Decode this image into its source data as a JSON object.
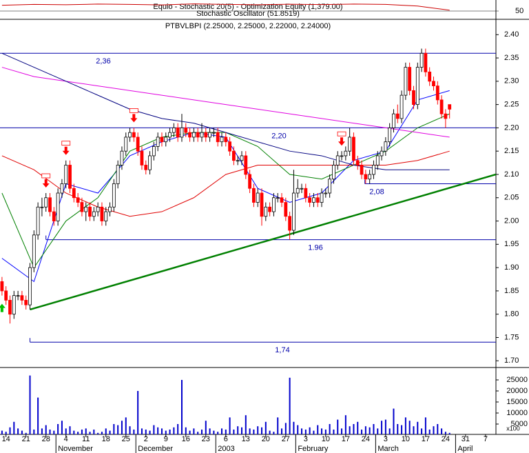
{
  "chart_data": {
    "type": "candlestick",
    "title": "PTBVLBPI (2.25000, 2.25000, 2.22000, 2.24000)",
    "xlim": [
      -0.5,
      123.6
    ],
    "ylim": [
      1.69,
      2.43
    ],
    "yticks": [
      {
        "value": 2.4,
        "label": "2.40"
      },
      2.35,
      {
        "value": 2.3,
        "label": "2.30"
      },
      2.25,
      {
        "value": 2.2,
        "label": "2.20"
      },
      2.15,
      {
        "value": 2.1,
        "label": "2.10"
      },
      2.05,
      {
        "value": 2.0,
        "label": "2.00"
      },
      1.95,
      {
        "value": 1.9,
        "label": "1.90"
      },
      1.85,
      {
        "value": 1.8,
        "label": "1.80"
      },
      1.75,
      {
        "value": 1.7,
        "label": "1.70"
      }
    ],
    "xticks": [
      {
        "value": 1,
        "label": "14"
      },
      {
        "value": 6,
        "label": "21"
      },
      {
        "value": 11,
        "label": "28"
      },
      {
        "value": 16,
        "label": "4"
      },
      {
        "value": 21,
        "label": "11"
      },
      {
        "value": 26,
        "label": "18"
      },
      {
        "value": 31,
        "label": "25"
      },
      {
        "value": 36,
        "label": "2"
      },
      {
        "value": 41,
        "label": "9"
      },
      {
        "value": 46,
        "label": "16"
      },
      {
        "value": 51,
        "label": "23"
      },
      {
        "value": 56,
        "label": "6"
      },
      {
        "value": 61,
        "label": "13"
      },
      {
        "value": 66,
        "label": "20"
      },
      {
        "value": 71,
        "label": "27"
      },
      {
        "value": 76,
        "label": "3"
      },
      {
        "value": 81,
        "label": "10"
      },
      {
        "value": 86,
        "label": "17"
      },
      {
        "value": 91,
        "label": "24"
      },
      {
        "value": 96,
        "label": "3"
      },
      {
        "value": 101,
        "label": "10"
      },
      {
        "value": 106,
        "label": "17"
      },
      {
        "value": 111,
        "label": "24"
      },
      {
        "value": 116,
        "label": "31"
      },
      {
        "value": 121,
        "label": "7"
      }
    ],
    "months": [
      {
        "value": 13.5,
        "label": "November"
      },
      {
        "value": 33.5,
        "label": "December"
      },
      {
        "value": 53.5,
        "label": "2003"
      },
      {
        "value": 73.5,
        "label": "February"
      },
      {
        "value": 93.5,
        "label": "March"
      },
      {
        "value": 113.5,
        "label": "April"
      }
    ],
    "candles": {
      "up_color": "#ffffff",
      "down_color": "#ff0000",
      "open": [
        1.87,
        1.85,
        1.83,
        1.8,
        1.84,
        1.84,
        1.83,
        1.82,
        1.9,
        1.97,
        2.03,
        2.03,
        2.05,
        2.02,
        2.0,
        2.06,
        2.08,
        2.12,
        2.07,
        2.05,
        2.04,
        2.02,
        2.03,
        2.01,
        2.02,
        2.03,
        2.0,
        2.02,
        2.03,
        2.08,
        2.12,
        2.15,
        2.18,
        2.19,
        2.18,
        2.15,
        2.12,
        2.11,
        2.14,
        2.16,
        2.18,
        2.17,
        2.18,
        2.19,
        2.2,
        2.18,
        2.2,
        2.19,
        2.18,
        2.19,
        2.18,
        2.19,
        2.18,
        2.19,
        2.19,
        2.17,
        2.18,
        2.17,
        2.15,
        2.13,
        2.13,
        2.14,
        2.1,
        2.07,
        2.04,
        2.06,
        2.01,
        2.03,
        2.02,
        2.05,
        2.05,
        2.04,
        2.01,
        1.98,
        2.06,
        2.07,
        2.07,
        2.05,
        2.04,
        2.05,
        2.04,
        2.06,
        2.06,
        2.09,
        2.12,
        2.14,
        2.14,
        2.15,
        2.18,
        2.13,
        2.12,
        2.1,
        2.09,
        2.1,
        2.12,
        2.14,
        2.15,
        2.17,
        2.2,
        2.23,
        2.22,
        2.27,
        2.33,
        2.28,
        2.25,
        2.33,
        2.36,
        2.32,
        2.3,
        2.29,
        2.26,
        2.23,
        2.25
      ],
      "high": [
        1.88,
        1.86,
        1.84,
        1.85,
        1.85,
        1.85,
        1.84,
        1.91,
        1.98,
        2.04,
        2.05,
        2.06,
        2.06,
        2.03,
        2.07,
        2.09,
        2.13,
        2.13,
        2.08,
        2.06,
        2.05,
        2.04,
        2.04,
        2.03,
        2.04,
        2.04,
        2.03,
        2.04,
        2.09,
        2.13,
        2.16,
        2.19,
        2.2,
        2.2,
        2.19,
        2.16,
        2.13,
        2.15,
        2.17,
        2.19,
        2.19,
        2.19,
        2.2,
        2.21,
        2.21,
        2.23,
        2.21,
        2.2,
        2.2,
        2.2,
        2.21,
        2.2,
        2.2,
        2.2,
        2.2,
        2.19,
        2.19,
        2.18,
        2.16,
        2.14,
        2.15,
        2.15,
        2.11,
        2.08,
        2.07,
        2.07,
        2.04,
        2.04,
        2.06,
        2.06,
        2.06,
        2.05,
        2.02,
        2.11,
        2.09,
        2.08,
        2.08,
        2.06,
        2.06,
        2.06,
        2.07,
        2.07,
        2.1,
        2.13,
        2.15,
        2.15,
        2.16,
        2.2,
        2.19,
        2.14,
        2.13,
        2.11,
        2.11,
        2.13,
        2.15,
        2.16,
        2.18,
        2.21,
        2.24,
        2.25,
        2.28,
        2.34,
        2.34,
        2.29,
        2.34,
        2.37,
        2.37,
        2.33,
        2.31,
        2.3,
        2.27,
        2.24,
        2.25
      ],
      "low": [
        1.84,
        1.82,
        1.78,
        1.79,
        1.83,
        1.82,
        1.81,
        1.81,
        1.89,
        1.96,
        2.01,
        2.02,
        2.01,
        1.99,
        1.99,
        2.05,
        2.07,
        2.06,
        2.04,
        2.03,
        2.01,
        2.0,
        2.0,
        2.0,
        2.01,
        1.99,
        1.99,
        2.01,
        2.02,
        2.07,
        2.11,
        2.14,
        2.17,
        2.17,
        2.14,
        2.11,
        2.1,
        2.1,
        2.13,
        2.15,
        2.16,
        2.16,
        2.17,
        2.18,
        2.17,
        2.17,
        2.18,
        2.17,
        2.17,
        2.17,
        2.17,
        2.17,
        2.17,
        2.18,
        2.16,
        2.16,
        2.16,
        2.14,
        2.12,
        2.12,
        2.12,
        2.09,
        2.06,
        2.03,
        2.03,
        1.99,
        2.0,
        2.01,
        2.01,
        2.04,
        2.03,
        2.0,
        1.96,
        1.97,
        2.05,
        2.06,
        2.04,
        2.03,
        2.03,
        2.03,
        2.03,
        2.05,
        2.05,
        2.08,
        2.11,
        2.13,
        2.13,
        2.14,
        2.12,
        2.11,
        2.09,
        2.08,
        2.08,
        2.09,
        2.11,
        2.13,
        2.14,
        2.16,
        2.19,
        2.21,
        2.21,
        2.26,
        2.27,
        2.24,
        2.24,
        2.32,
        2.31,
        2.29,
        2.28,
        2.25,
        2.22,
        2.2,
        2.22
      ],
      "close": [
        1.85,
        1.83,
        1.8,
        1.84,
        1.84,
        1.83,
        1.82,
        1.9,
        1.97,
        2.03,
        2.03,
        2.05,
        2.02,
        2.0,
        2.06,
        2.08,
        2.12,
        2.07,
        2.05,
        2.04,
        2.02,
        2.03,
        2.01,
        2.02,
        2.03,
        2.0,
        2.02,
        2.03,
        2.08,
        2.12,
        2.15,
        2.18,
        2.19,
        2.18,
        2.15,
        2.12,
        2.11,
        2.14,
        2.16,
        2.18,
        2.17,
        2.18,
        2.19,
        2.2,
        2.18,
        2.2,
        2.19,
        2.18,
        2.19,
        2.18,
        2.19,
        2.18,
        2.19,
        2.19,
        2.17,
        2.18,
        2.17,
        2.15,
        2.13,
        2.13,
        2.14,
        2.1,
        2.07,
        2.04,
        2.06,
        2.01,
        2.03,
        2.02,
        2.05,
        2.05,
        2.04,
        2.01,
        1.98,
        2.06,
        2.07,
        2.07,
        2.05,
        2.04,
        2.05,
        2.04,
        2.06,
        2.06,
        2.09,
        2.12,
        2.14,
        2.14,
        2.15,
        2.18,
        2.13,
        2.12,
        2.1,
        2.09,
        2.1,
        2.12,
        2.14,
        2.15,
        2.17,
        2.2,
        2.23,
        2.22,
        2.27,
        2.33,
        2.28,
        2.25,
        2.33,
        2.36,
        2.32,
        2.3,
        2.29,
        2.26,
        2.23,
        2.22,
        2.24
      ]
    },
    "overlays": [
      {
        "color": "#0000ff",
        "x": [
          0,
          8,
          16,
          24,
          32,
          40,
          48,
          56,
          64,
          72,
          80,
          88,
          96,
          104,
          112
        ],
        "values": [
          1.92,
          1.87,
          2.08,
          2.06,
          2.14,
          2.17,
          2.19,
          2.18,
          2.07,
          2.04,
          2.06,
          2.13,
          2.15,
          2.26,
          2.28
        ]
      },
      {
        "color": "#008000",
        "x": [
          0,
          8,
          16,
          24,
          32,
          40,
          48,
          56,
          64,
          72,
          80,
          88,
          96,
          104,
          112
        ],
        "values": [
          2.06,
          1.9,
          2.0,
          2.05,
          2.15,
          2.18,
          2.19,
          2.19,
          2.16,
          2.1,
          2.09,
          2.12,
          2.15,
          2.2,
          2.23
        ]
      },
      {
        "color": "#e00000",
        "x": [
          0,
          8,
          16,
          24,
          32,
          40,
          48,
          56,
          64,
          72,
          80,
          88,
          96,
          104,
          112
        ],
        "values": [
          2.14,
          2.11,
          2.06,
          2.03,
          2.01,
          2.02,
          2.05,
          2.1,
          2.12,
          2.12,
          2.12,
          2.12,
          2.12,
          2.13,
          2.15
        ]
      },
      {
        "color": "#e000e0",
        "x": [
          0,
          8,
          16,
          24,
          32,
          40,
          48,
          56,
          64,
          72,
          80,
          88,
          96,
          104,
          112
        ],
        "values": [
          2.33,
          2.31,
          2.3,
          2.29,
          2.28,
          2.27,
          2.26,
          2.25,
          2.24,
          2.23,
          2.22,
          2.21,
          2.2,
          2.19,
          2.18
        ]
      },
      {
        "color": "#000080",
        "x": [
          0,
          8,
          16,
          24,
          32,
          40,
          48,
          56,
          64,
          72,
          80,
          88,
          96,
          104,
          112
        ],
        "values": [
          2.36,
          2.33,
          2.3,
          2.27,
          2.24,
          2.22,
          2.21,
          2.19,
          2.17,
          2.15,
          2.14,
          2.12,
          2.11,
          2.11,
          2.11
        ]
      }
    ],
    "levels": [
      {
        "value": 2.36,
        "label": "2,36",
        "start": -0.5
      },
      {
        "value": 2.2,
        "label": "2,20",
        "start": -0.5
      },
      {
        "value": 2.08,
        "label": "2,08",
        "start": 90.8
      },
      {
        "value": 1.96,
        "label": "1.96",
        "start": 11
      },
      {
        "value": 1.74,
        "label": "1,74",
        "start": 7
      }
    ],
    "trendline": {
      "color": "#008000",
      "x": [
        7,
        123.6
      ],
      "values": [
        1.81,
        2.1
      ]
    },
    "signals": {
      "sell": [
        11,
        16,
        33,
        85
      ],
      "buy": [
        0
      ]
    },
    "volume": {
      "color": "#0000cc",
      "unit": "x100",
      "ylim": [
        0,
        30000
      ],
      "yticks": [
        25000,
        20000,
        15000,
        10000,
        5000
      ],
      "values": [
        2000,
        1500,
        3500,
        6000,
        3000,
        2000,
        1000,
        27000,
        2500,
        17000,
        3000,
        4500,
        2500,
        2000,
        5000,
        6500,
        3000,
        4000,
        2000,
        1500,
        2500,
        3000,
        1500,
        2500,
        1000,
        1500,
        3000,
        2000,
        5000,
        4500,
        6500,
        8000,
        4000,
        2500,
        20000,
        3000,
        2500,
        2000,
        4500,
        3500,
        3000,
        2000,
        2500,
        3500,
        5000,
        25000,
        3500,
        2000,
        3000,
        1500,
        2500,
        6500,
        3000,
        2000,
        1500,
        3000,
        2500,
        8000,
        2500,
        4000,
        3500,
        9000,
        3000,
        2500,
        4000,
        3500,
        6000,
        2000,
        1500,
        8000,
        3000,
        5500,
        26000,
        6000,
        4500,
        3000,
        2500,
        3500,
        2000,
        4500,
        3000,
        2500,
        5000,
        2500,
        7000,
        3000,
        9000,
        4000,
        5000,
        6000,
        2500,
        4000,
        3500,
        5000,
        3000,
        6500,
        7000,
        3000,
        12000,
        5000,
        4500,
        8000,
        6500,
        4000,
        6000,
        3000,
        8000,
        2500,
        4000,
        5000,
        3000,
        1500,
        1000
      ]
    },
    "stochastic": {
      "title": "Equio - Stochastic 20(5) - Optimization Equity (1,379.00)",
      "subtitle": "Stochastic Oscillator (51.8519)",
      "color": "#cc0000",
      "ylim": [
        0,
        100
      ],
      "yticks": [
        50
      ],
      "x": [
        0,
        8,
        16,
        24,
        32,
        40,
        48,
        56,
        64,
        72,
        80,
        88,
        96,
        104,
        112
      ],
      "values": [
        85,
        90,
        88,
        92,
        90,
        87,
        93,
        90,
        88,
        91,
        89,
        92,
        90,
        80,
        55
      ]
    }
  }
}
